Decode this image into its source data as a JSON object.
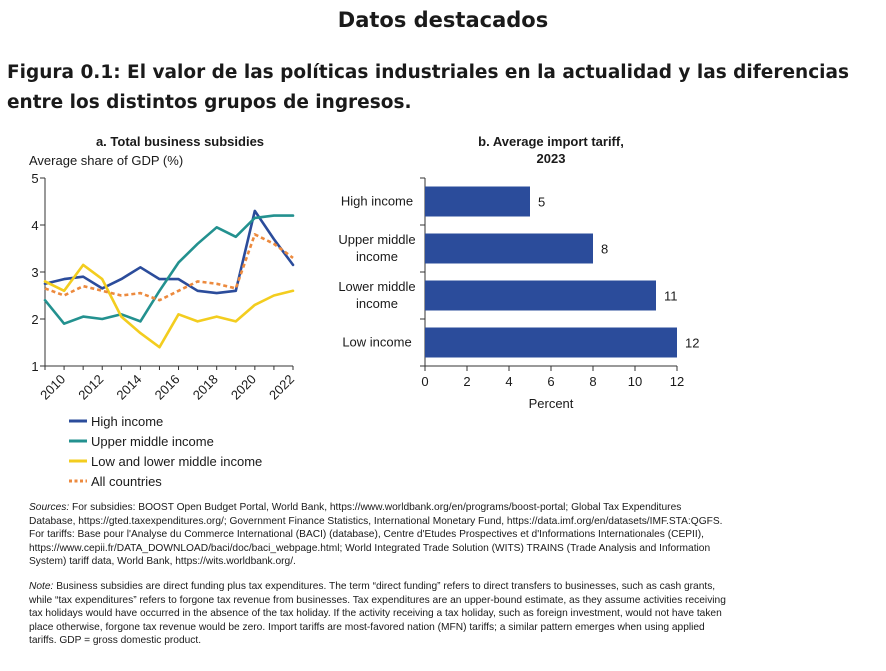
{
  "header": "Datos destacados",
  "figure_title": "Figura 0.1: El valor de las políticas industriales en la actualidad y las diferencias entre los distintos grupos de ingresos.",
  "sources_label": "Sources:",
  "sources_text": "For subsidies: BOOST Open Budget Portal, World Bank, https://www.worldbank.org/en/programs/boost-portal; Global Tax Expenditures Database, https://gted.taxexpenditures.org/; Government Finance Statistics, International Monetary Fund, https://data.imf.org/en/datasets/IMF.STA:QGFS. For tariffs: Base pour l'Analyse du Commerce International (BACI) (database), Centre d'Etudes Prospectives et d'Informations Internationales (CEPII), https://www.cepii.fr/DATA_DOWNLOAD/baci/doc/baci_webpage.html; World Integrated Trade Solution (WITS) TRAINS (Trade Analysis and Information System) tariff data, World Bank, https://wits.worldbank.org/.",
  "note_label": "Note:",
  "note_text": "Business subsidies are direct funding plus tax expenditures. The term “direct funding” refers to direct transfers to businesses, such as cash grants, while “tax expenditures” refers to forgone tax revenue from businesses. Tax expenditures are an upper-bound estimate, as they assume activities receiving tax holidays would have occurred in the absence of the tax holiday. If the activity receiving a tax holiday, such as foreign investment, would not have taken place otherwise, forgone tax revenue would be zero. Import tariffs are most-favored nation (MFN) tariffs; a similar pattern emerges when using applied tariffs. GDP = gross domestic product.",
  "chart_data": [
    {
      "type": "line",
      "title": "a. Total business subsidies",
      "ylabel": "Average share of GDP (%)",
      "xlabel": "",
      "x": [
        2009,
        2010,
        2011,
        2012,
        2013,
        2014,
        2015,
        2016,
        2017,
        2018,
        2019,
        2020,
        2021,
        2022
      ],
      "x_ticks": [
        2010,
        2012,
        2014,
        2016,
        2018,
        2020,
        2022
      ],
      "xlim": [
        2009,
        2022
      ],
      "ylim": [
        1,
        5
      ],
      "y_ticks": [
        1,
        2,
        3,
        4,
        5
      ],
      "grid": false,
      "legend_position": "bottom",
      "series": [
        {
          "name": "High income",
          "color": "#2b4c9b",
          "style": "solid",
          "values": [
            2.75,
            2.85,
            2.9,
            2.65,
            2.85,
            3.1,
            2.85,
            2.85,
            2.6,
            2.55,
            2.6,
            4.3,
            3.7,
            3.15
          ]
        },
        {
          "name": "Upper middle income",
          "color": "#23918f",
          "style": "solid",
          "values": [
            2.4,
            1.9,
            2.05,
            2.0,
            2.1,
            1.95,
            2.6,
            3.2,
            3.6,
            3.95,
            3.75,
            4.15,
            4.2,
            4.2
          ]
        },
        {
          "name": "Low and lower middle income",
          "color": "#f3cd1f",
          "style": "solid",
          "values": [
            2.8,
            2.6,
            3.15,
            2.85,
            2.05,
            1.7,
            1.4,
            2.1,
            1.95,
            2.05,
            1.95,
            2.3,
            2.5,
            2.6
          ]
        },
        {
          "name": "All countries",
          "color": "#ec8a3e",
          "style": "dashed",
          "values": [
            2.65,
            2.5,
            2.7,
            2.6,
            2.5,
            2.55,
            2.4,
            2.6,
            2.8,
            2.75,
            2.65,
            3.8,
            3.6,
            3.3
          ]
        }
      ]
    },
    {
      "type": "bar",
      "orientation": "horizontal",
      "title_lines": [
        "b. Average import tariff,",
        "2023"
      ],
      "xlabel": "Percent",
      "xlim": [
        0,
        12
      ],
      "x_ticks": [
        0,
        2,
        4,
        6,
        8,
        10,
        12
      ],
      "categories": [
        [
          "High income"
        ],
        [
          "Upper middle",
          "income"
        ],
        [
          "Lower middle",
          "income"
        ],
        [
          "Low income"
        ]
      ],
      "values": [
        5,
        8,
        11,
        12
      ],
      "labels": [
        "5",
        "8",
        "11",
        "12"
      ],
      "color": "#2b4c9b"
    }
  ]
}
